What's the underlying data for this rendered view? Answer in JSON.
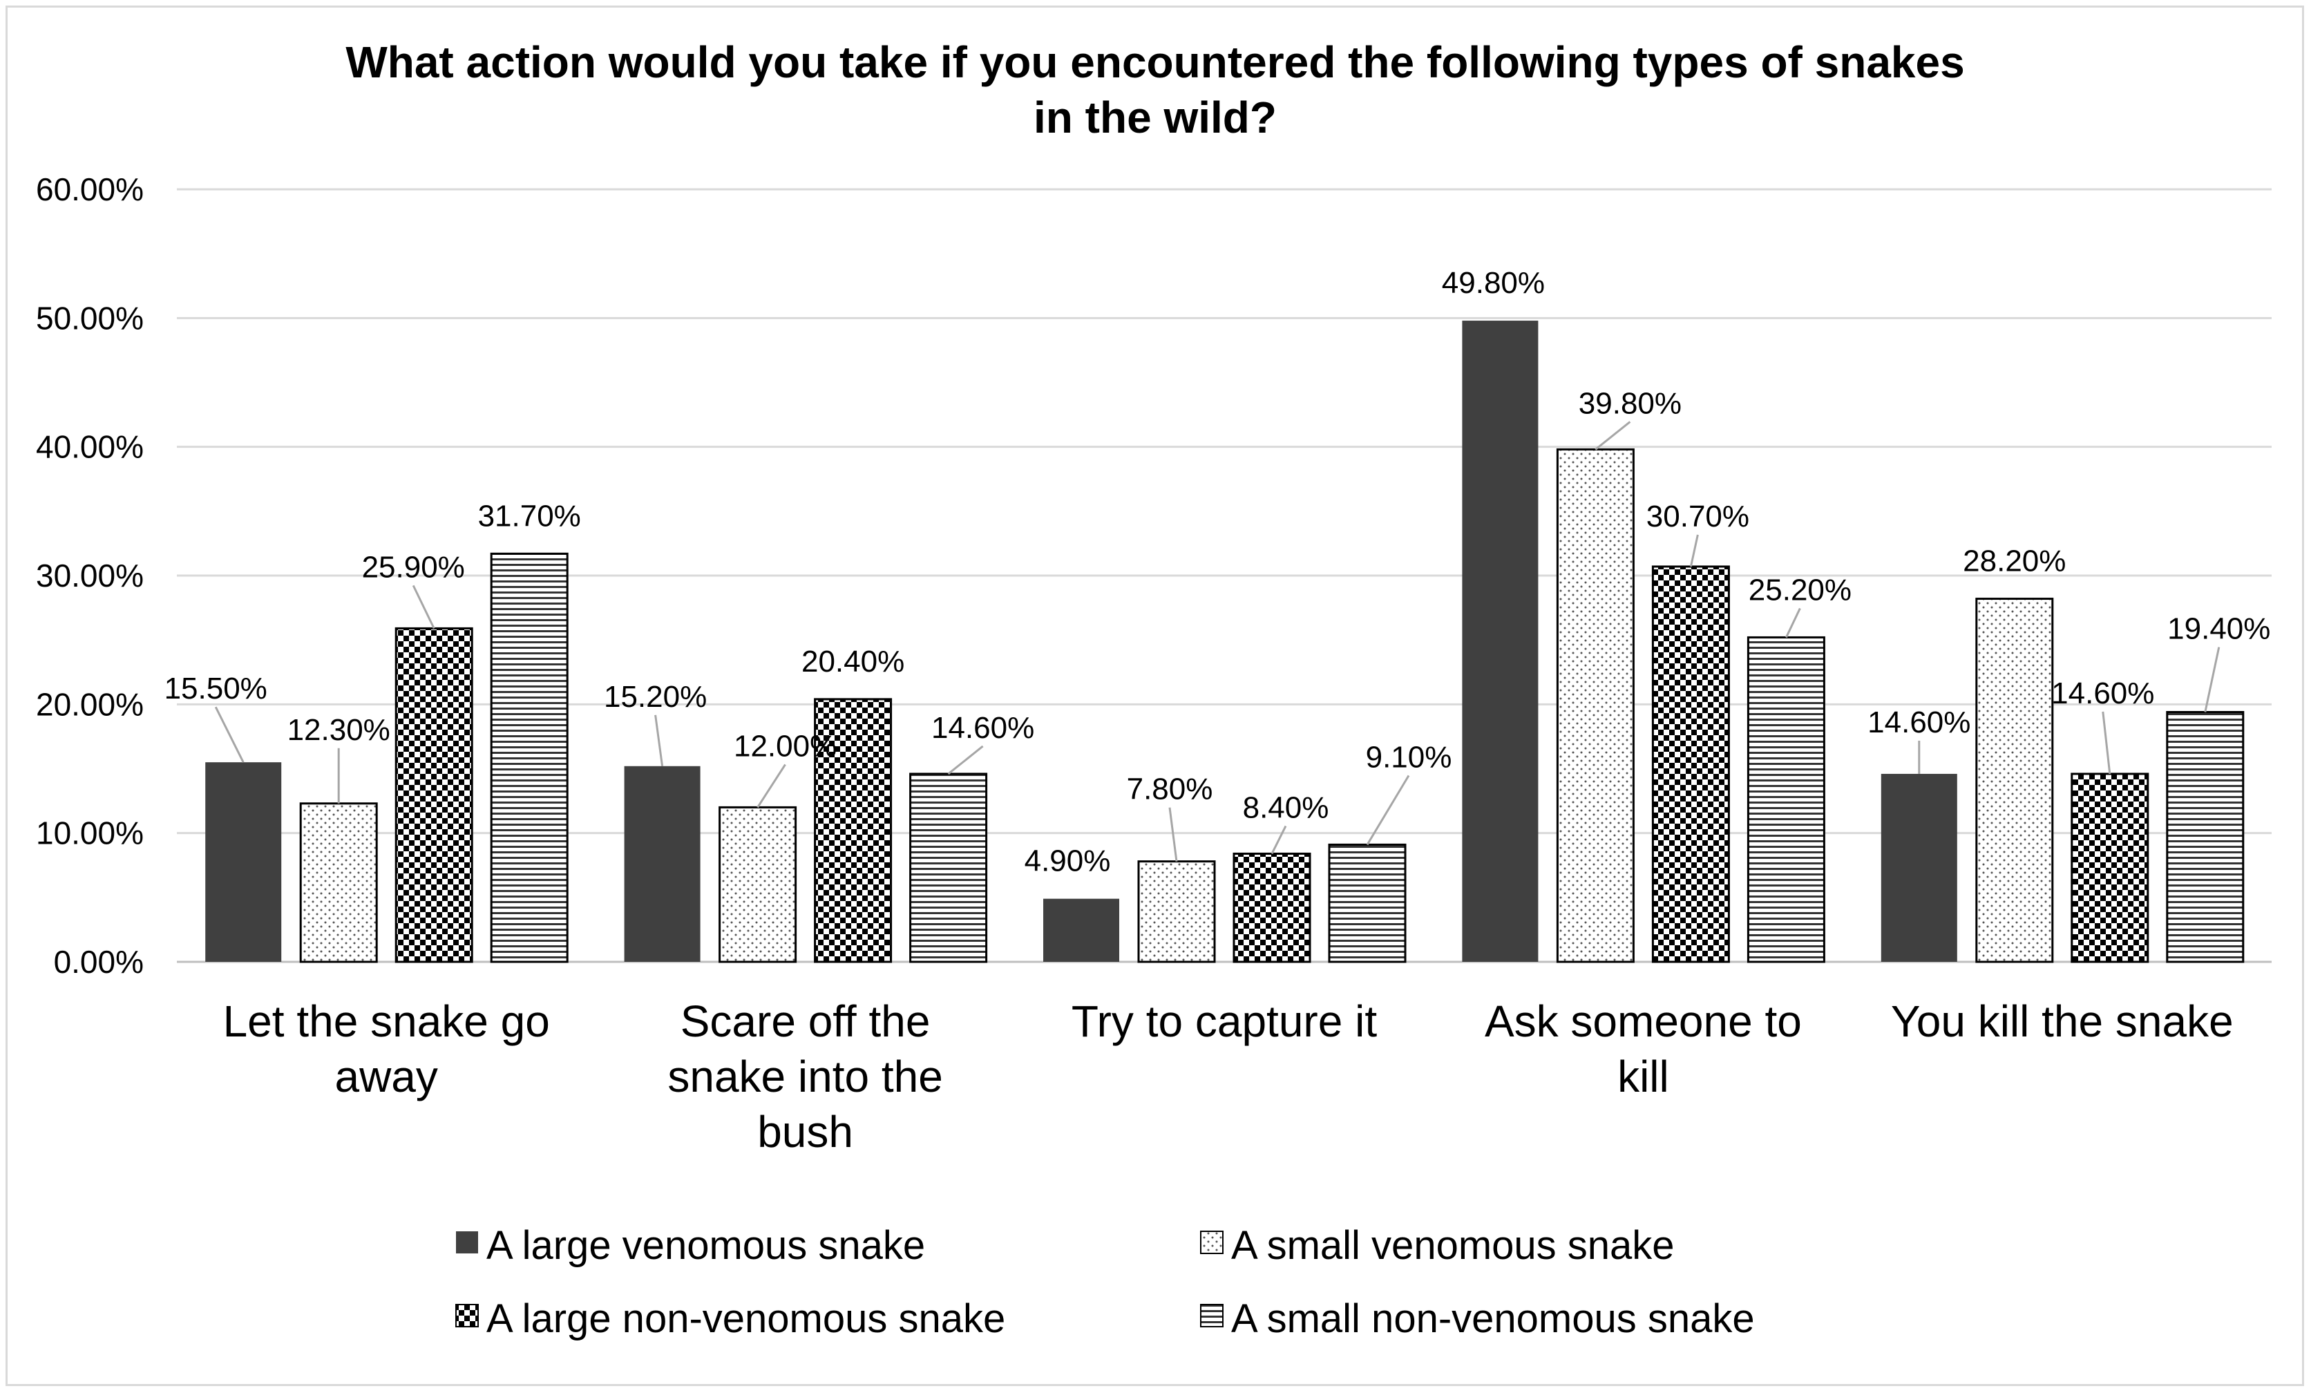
{
  "chart_data": {
    "type": "bar",
    "title": "What action would you take if you encountered the following types of snakes in the wild?",
    "title_lines": [
      "What action would you take if you encountered the following types of snakes",
      "in the wild?"
    ],
    "xlabel": "",
    "ylabel": "",
    "ylim": [
      0,
      60
    ],
    "yticks": [
      "0.00%",
      "10.00%",
      "20.00%",
      "30.00%",
      "40.00%",
      "50.00%",
      "60.00%"
    ],
    "grid": true,
    "legend_position": "bottom",
    "categories": [
      [
        "Let the snake go",
        "away"
      ],
      [
        "Scare off the",
        "snake into the",
        "bush"
      ],
      [
        "Try to capture it"
      ],
      [
        "Ask someone to",
        "kill"
      ],
      [
        "You kill the snake"
      ]
    ],
    "series": [
      {
        "name": "A large venomous snake",
        "pattern": "solid",
        "color": "#404040",
        "values": [
          15.5,
          15.2,
          4.9,
          49.8,
          14.6
        ],
        "labels": [
          "15.50%",
          "15.20%",
          "4.90%",
          "49.80%",
          "14.60%"
        ]
      },
      {
        "name": "A small venomous snake",
        "pattern": "dots",
        "color": "#ffffff",
        "values": [
          12.3,
          12.0,
          7.8,
          39.8,
          28.2
        ],
        "labels": [
          "12.30%",
          "12.00%",
          "7.80%",
          "39.80%",
          "28.20%"
        ]
      },
      {
        "name": "A large non-venomous snake",
        "pattern": "checker",
        "color": "#000000",
        "values": [
          25.9,
          20.4,
          8.4,
          30.7,
          14.6
        ],
        "labels": [
          "25.90%",
          "20.40%",
          "8.40%",
          "30.70%",
          "14.60%"
        ]
      },
      {
        "name": "A small non-venomous snake",
        "pattern": "hlines",
        "color": "#000000",
        "values": [
          31.7,
          14.6,
          9.1,
          25.2,
          19.4
        ],
        "labels": [
          "31.70%",
          "14.60%",
          "9.10%",
          "25.20%",
          "19.40%"
        ]
      }
    ]
  }
}
